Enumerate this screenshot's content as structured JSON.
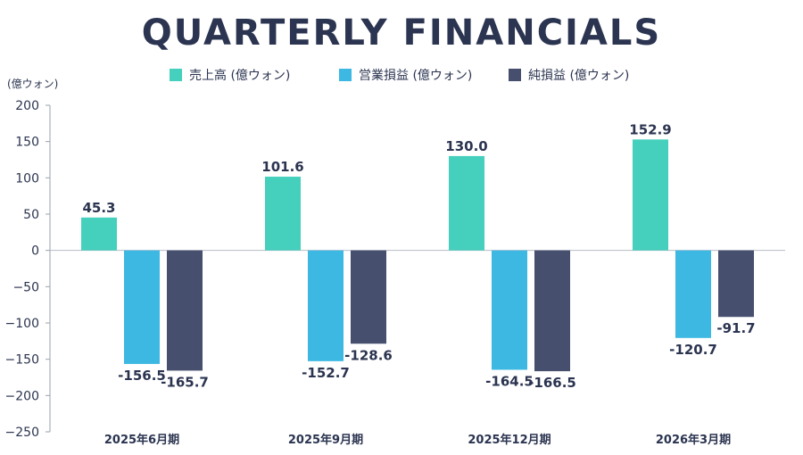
{
  "chart_data": {
    "type": "bar",
    "title": "QUARTERLY FINANCIALS",
    "unit_label": "(億ウォン)",
    "categories": [
      "2025年6月期",
      "2025年9月期",
      "2025年12月期",
      "2026年3月期"
    ],
    "series": [
      {
        "name": "売上高 (億ウォン)",
        "color": "#45cfbd",
        "values": [
          45.3,
          101.6,
          130.0,
          152.9
        ]
      },
      {
        "name": "営業損益 (億ウォン)",
        "color": "#3db8e2",
        "values": [
          -156.5,
          -152.7,
          -164.5,
          -120.7
        ]
      },
      {
        "name": "純損益 (億ウォン)",
        "color": "#46506e",
        "values": [
          -165.7,
          -128.6,
          -166.5,
          -91.7
        ]
      }
    ],
    "value_labels": [
      [
        "45.3",
        "101.6",
        "130.0",
        "152.9"
      ],
      [
        "-156.5",
        "-152.7",
        "-164.5",
        "-120.7"
      ],
      [
        "-165.7",
        "-128.6",
        "-166.5",
        "-91.7"
      ]
    ],
    "ylim": [
      -250,
      200
    ],
    "yticks": [
      -250,
      -200,
      -150,
      -100,
      -50,
      0,
      50,
      100,
      150,
      200
    ],
    "ytick_labels": [
      "−250",
      "−200",
      "−150",
      "−100",
      "−50",
      "0",
      "50",
      "100",
      "150",
      "200"
    ],
    "grid": false,
    "legend_position": "top"
  }
}
